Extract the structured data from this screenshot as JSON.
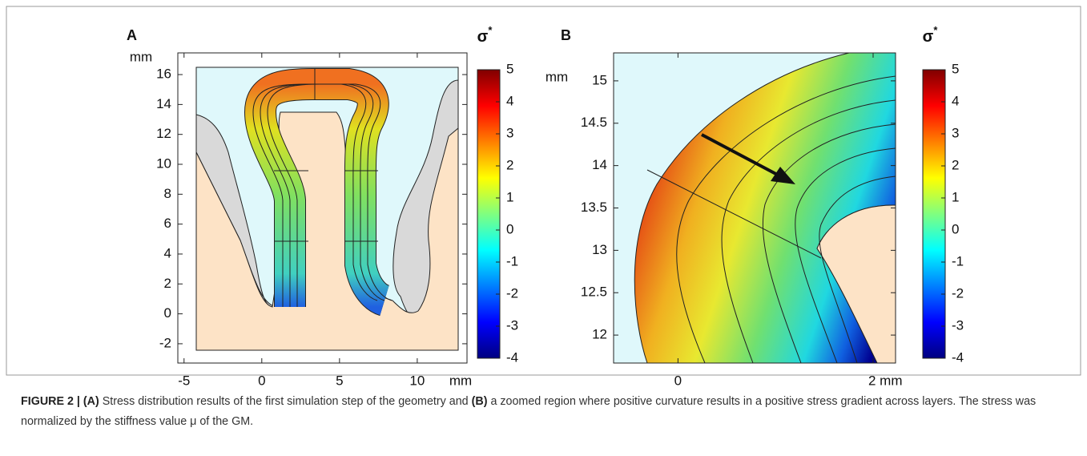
{
  "chart_data": [
    {
      "type": "contour",
      "panel_label": "A",
      "y_unit": "mm",
      "x_unit": "mm",
      "xlim": [
        -5.4,
        13.2
      ],
      "xticks": [
        -5,
        0,
        5,
        10
      ],
      "ylim": [
        -3.29,
        17.45
      ],
      "yticks": [
        -2,
        0,
        2,
        4,
        6,
        8,
        10,
        12,
        14,
        16
      ],
      "colorbar": {
        "label": "σ",
        "label_sup": "*",
        "lim": [
          -4,
          5
        ],
        "ticks": [
          -4,
          -3,
          -2,
          -1,
          0,
          1,
          2,
          3,
          4,
          5
        ]
      }
    },
    {
      "type": "contour",
      "panel_label": "B",
      "y_unit": "mm",
      "xlim": [
        -0.66,
        2.23
      ],
      "xticks": [
        0,
        {
          "value": 2,
          "label": "2 mm"
        }
      ],
      "ylim": [
        11.67,
        15.33
      ],
      "yticks": [
        12,
        12.5,
        13,
        13.5,
        14,
        14.5,
        15
      ],
      "colorbar": {
        "label": "σ",
        "label_sup": "*",
        "lim": [
          -4,
          5
        ],
        "ticks": [
          -4,
          -3,
          -2,
          -1,
          0,
          1,
          2,
          3,
          4,
          5
        ]
      }
    }
  ],
  "caption": [
    "FIGURE 2 | (A)",
    " Stress distribution results of the first simulation step of the geometry and ",
    "(B)",
    " a zoomed region where positive curvature results in a positive stress gradient across layers. The stress was normalized by the stiffness value μ of the GM."
  ]
}
